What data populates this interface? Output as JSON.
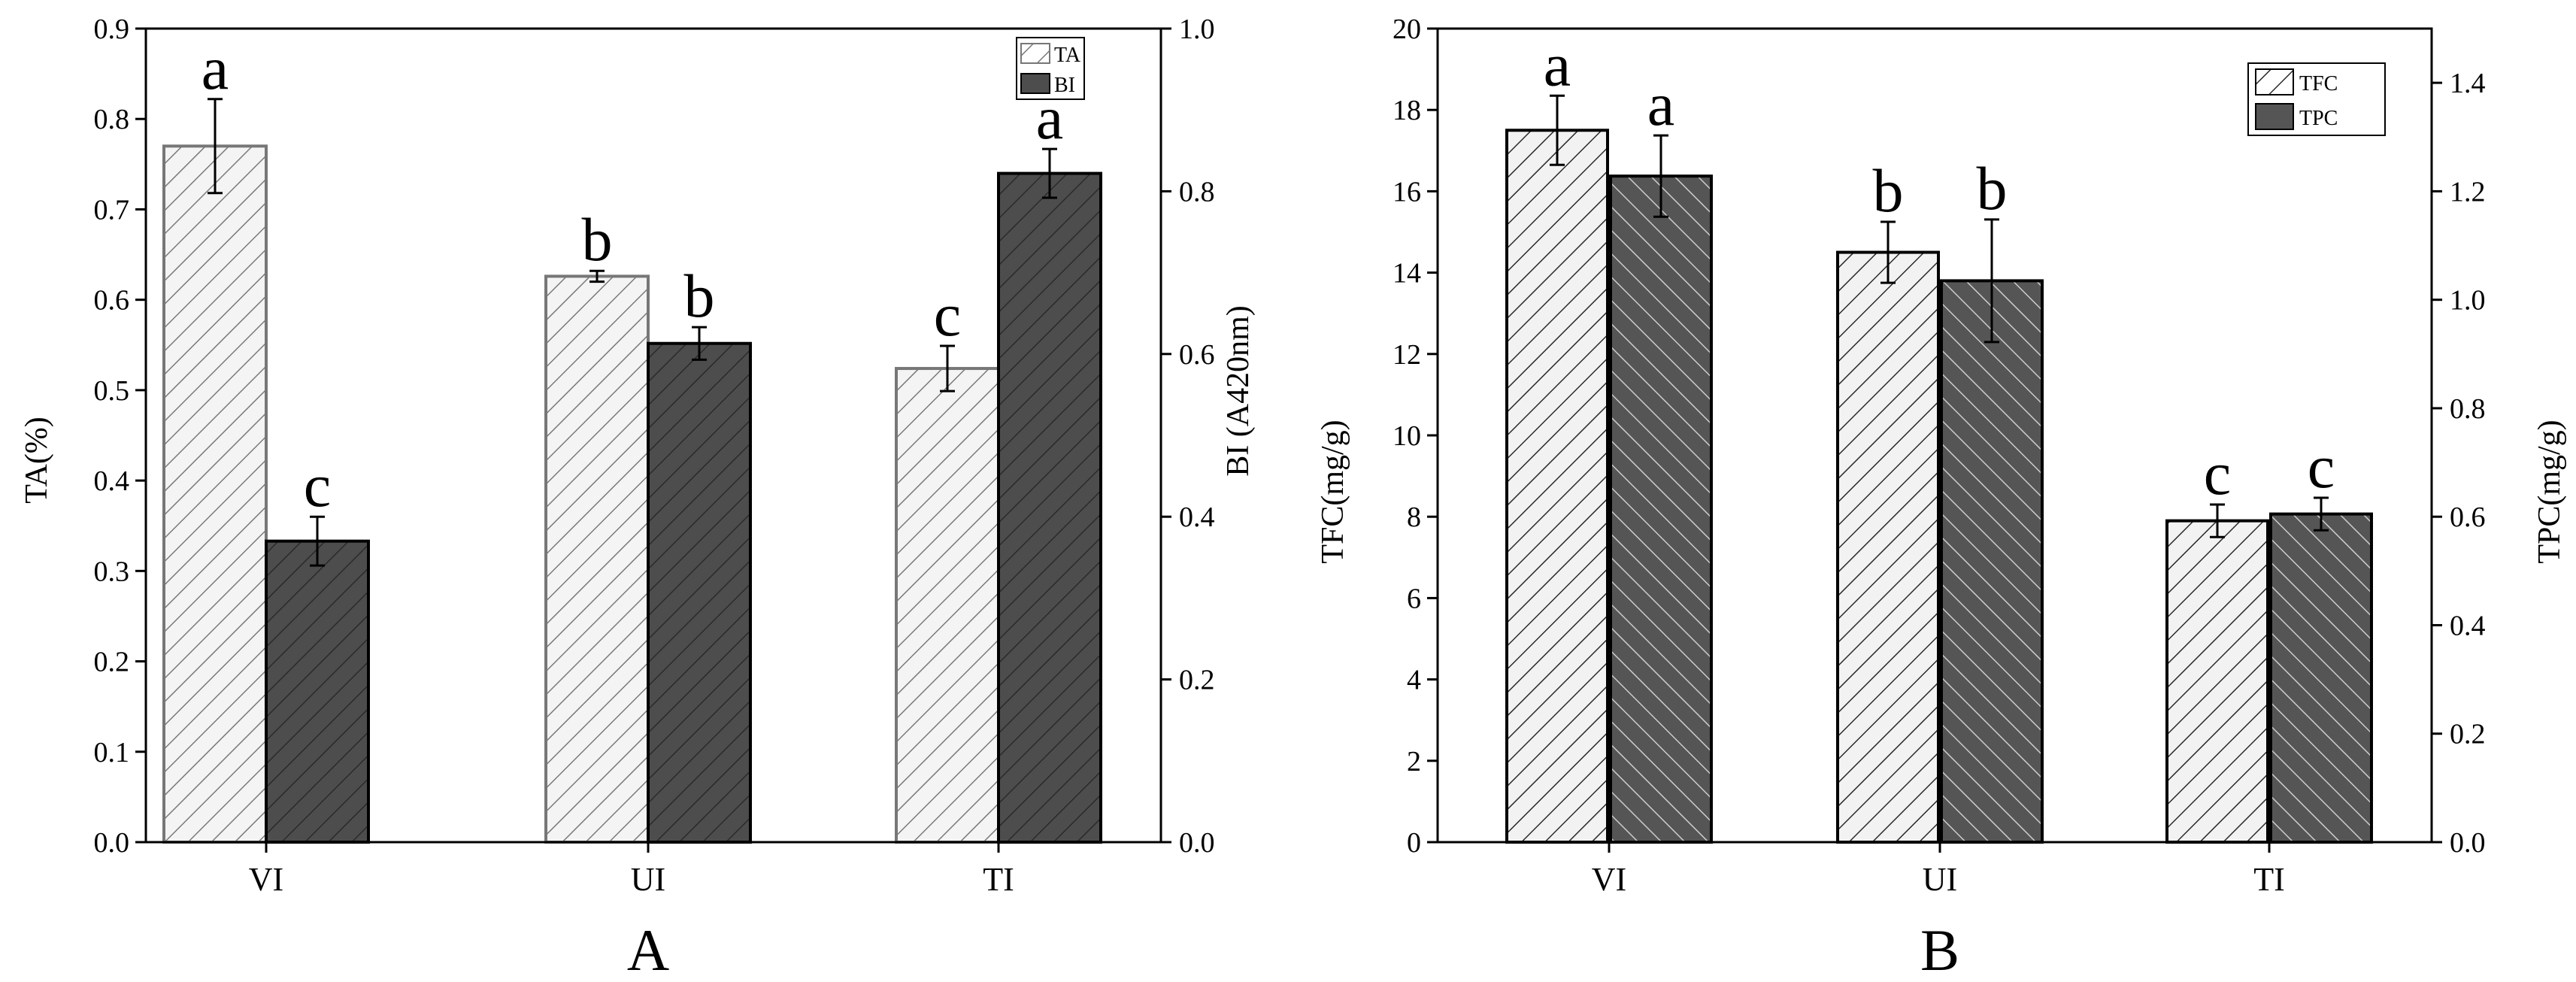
{
  "chart_data": [
    {
      "type": "bar",
      "panel_label": "A",
      "categories": [
        "VI",
        "UI",
        "TI"
      ],
      "ylabel": "TA(%)",
      "ylim": [
        0,
        0.9
      ],
      "yticks": [
        "0.0",
        "0.1",
        "0.2",
        "0.3",
        "0.4",
        "0.5",
        "0.6",
        "0.7",
        "0.8",
        "0.9"
      ],
      "y2label": "BI (A420nm)",
      "y2lim": [
        0,
        1.0
      ],
      "y2ticks": [
        "0.0",
        "0.2",
        "0.4",
        "0.6",
        "0.8",
        "1.0"
      ],
      "legend_position": "top-right",
      "series": [
        {
          "name": "TA",
          "axis": "left",
          "fill": "#f4f4f4",
          "hatch": "#7a7a7a",
          "edge": "#777777",
          "values": [
            0.77,
            0.626,
            0.524
          ],
          "errors": [
            0.052,
            0.006,
            0.025
          ],
          "letters": [
            "a",
            "b",
            "c"
          ]
        },
        {
          "name": "BI",
          "axis": "right",
          "fill": "#4d4d4d",
          "hatch": "#2a2a2a",
          "edge": "#000000",
          "values": [
            0.37,
            0.613,
            0.822
          ],
          "errors": [
            0.03,
            0.02,
            0.03
          ],
          "letters": [
            "c",
            "b",
            "a"
          ]
        }
      ]
    },
    {
      "type": "bar",
      "panel_label": "B",
      "categories": [
        "VI",
        "UI",
        "TI"
      ],
      "ylabel": "TFC(mg/g)",
      "ylim": [
        0,
        20
      ],
      "yticks": [
        "0",
        "2",
        "4",
        "6",
        "8",
        "10",
        "12",
        "14",
        "16",
        "18",
        "20"
      ],
      "y2label": "TPC(mg/g)",
      "y2lim": [
        0,
        1.5
      ],
      "y2ticks": [
        "0.0",
        "0.2",
        "0.4",
        "0.6",
        "0.8",
        "1.0",
        "1.2",
        "1.4"
      ],
      "legend_position": "top-right",
      "series": [
        {
          "name": "TFC",
          "axis": "left",
          "fill": "#f2f2f2",
          "hatch": "#2a2a2a",
          "edge": "#000000",
          "values": [
            17.5,
            14.5,
            7.9
          ],
          "errors": [
            0.85,
            0.75,
            0.4
          ],
          "letters": [
            "a",
            "b",
            "c"
          ]
        },
        {
          "name": "TPC",
          "axis": "right",
          "fill": "#555555",
          "hatch": "#cccccc",
          "edge": "#000000",
          "values": [
            1.228,
            1.035,
            0.605
          ],
          "errors": [
            0.075,
            0.113,
            0.03
          ],
          "letters": [
            "a",
            "b",
            "c"
          ]
        }
      ]
    }
  ]
}
